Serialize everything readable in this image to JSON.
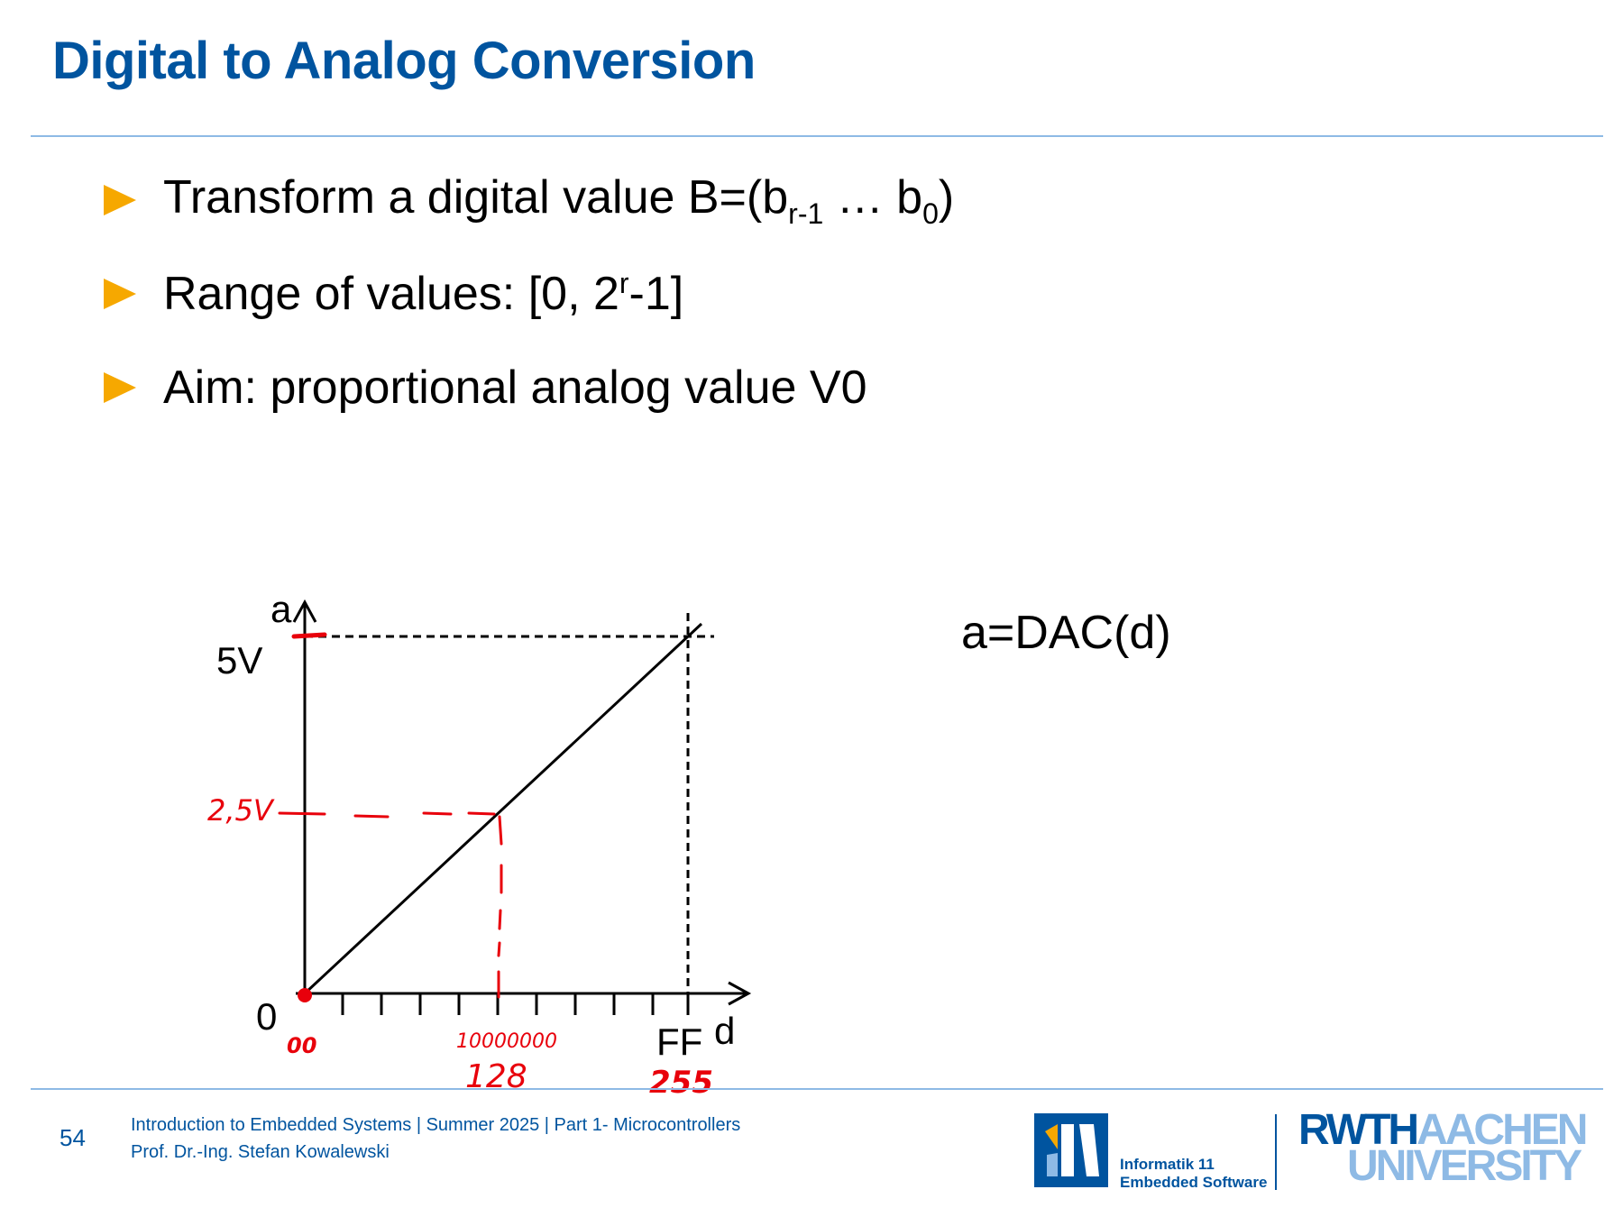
{
  "title": "Digital to Analog Conversion",
  "bullets": [
    {
      "pre": "Transform a digital value B=(b",
      "sub1": "r-1",
      "mid": " … b",
      "sub2": "0",
      "post": ")"
    },
    {
      "pre": "Range of values: [0, 2",
      "sup": "r",
      "post": "-1]"
    },
    {
      "text": "Aim: proportional analog value V0"
    }
  ],
  "formula": "a=DAC(d)",
  "diagram": {
    "y_axis_label": "a",
    "x_axis_label": "d",
    "y_max_label": "5V",
    "origin_label": "0",
    "x_max_label": "FF",
    "annotations": {
      "y_mid": "2,5V",
      "x_min_code": "00",
      "x_mid_binary": "10000000",
      "x_mid_decimal": "128",
      "x_max_decimal": "255"
    }
  },
  "footer": {
    "page_number": "54",
    "line1": "Introduction to Embedded Systems | Summer 2025 | Part 1- Microcontrollers",
    "line2": "Prof. Dr.-Ing. Stefan Kowalewski"
  },
  "logos": {
    "institute_line1": "Informatik 11",
    "institute_line2": "Embedded Software",
    "rwth_bold": "RWTH",
    "rwth_light": "AACHEN",
    "university": "UNIVERSITY"
  },
  "colors": {
    "title": "#00549f",
    "bullet": "#f6a800",
    "annotation": "#e8000b",
    "rule": "#8ebae5"
  }
}
